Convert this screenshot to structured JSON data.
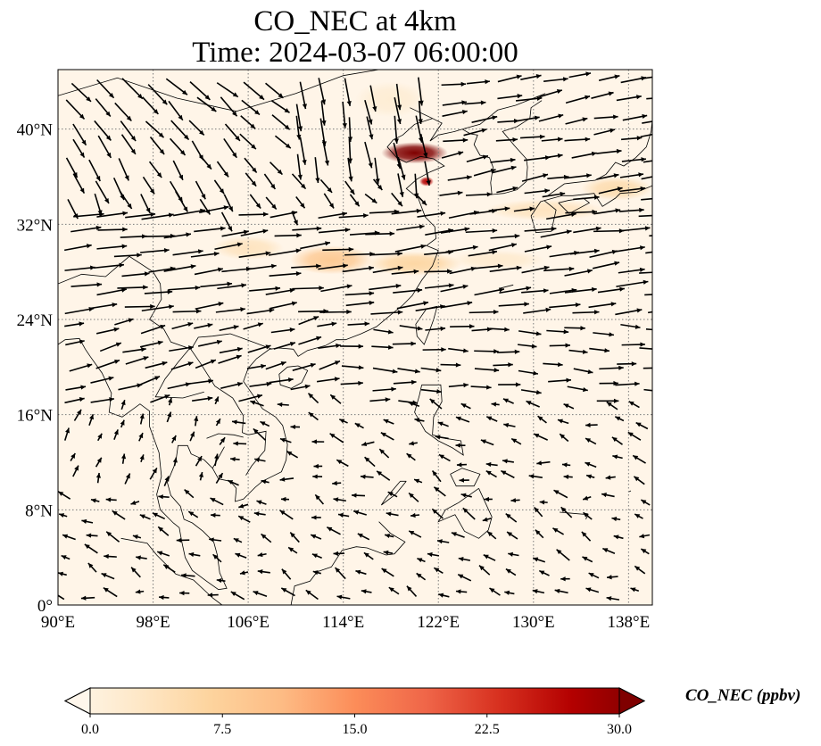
{
  "title": {
    "line1": "CO_NEC at 4km",
    "line2": "Time: 2024-03-07 06:00:00"
  },
  "map": {
    "extent": {
      "lon": [
        90,
        140
      ],
      "lat": [
        0,
        45
      ]
    },
    "lon_ticks": [
      {
        "value": 90,
        "label": "90°E"
      },
      {
        "value": 98,
        "label": "98°E"
      },
      {
        "value": 106,
        "label": "106°E"
      },
      {
        "value": 114,
        "label": "114°E"
      },
      {
        "value": 122,
        "label": "122°E"
      },
      {
        "value": 130,
        "label": "130°E"
      },
      {
        "value": 138,
        "label": "138°E"
      }
    ],
    "lat_ticks": [
      {
        "value": 0,
        "label": "0°"
      },
      {
        "value": 8,
        "label": "8°N"
      },
      {
        "value": 16,
        "label": "16°N"
      },
      {
        "value": 24,
        "label": "24°N"
      },
      {
        "value": 32,
        "label": "32°N"
      },
      {
        "value": 40,
        "label": "40°N"
      }
    ],
    "gridlines": true,
    "colors": {
      "background": "#fff5e8",
      "grid": "#7a7a7a",
      "coast": "#000000",
      "arrow": "#000000"
    },
    "plumes": [
      {
        "lon": 120.0,
        "lat": 38.0,
        "rlon": 2.8,
        "rlat": 0.9,
        "level": 30.0
      },
      {
        "lon": 121.0,
        "lat": 35.6,
        "rlon": 0.6,
        "rlat": 0.4,
        "level": 26.0
      },
      {
        "lon": 113.0,
        "lat": 29.0,
        "rlon": 3.5,
        "rlat": 1.2,
        "level": 9.0
      },
      {
        "lon": 120.0,
        "lat": 28.7,
        "rlon": 4.0,
        "rlat": 1.0,
        "level": 7.0
      },
      {
        "lon": 106.0,
        "lat": 30.0,
        "rlon": 3.0,
        "rlat": 1.0,
        "level": 4.5
      },
      {
        "lon": 131.0,
        "lat": 33.2,
        "rlon": 5.0,
        "rlat": 0.9,
        "level": 4.5
      },
      {
        "lon": 137.0,
        "lat": 35.0,
        "rlon": 3.0,
        "rlat": 1.0,
        "level": 6.0
      },
      {
        "lon": 127.0,
        "lat": 29.0,
        "rlon": 4.0,
        "rlat": 0.8,
        "level": 3.0
      },
      {
        "lon": 118.0,
        "lat": 42.5,
        "rlon": 3.0,
        "rlat": 1.5,
        "level": 2.5
      }
    ]
  },
  "colorbar": {
    "label": "CO_NEC (ppbv)",
    "min": 0.0,
    "max": 30.0,
    "ticks": [
      {
        "value": 0.0,
        "label": "0.0"
      },
      {
        "value": 7.5,
        "label": "7.5"
      },
      {
        "value": 15.0,
        "label": "15.0"
      },
      {
        "value": 22.5,
        "label": "22.5"
      },
      {
        "value": 30.0,
        "label": "30.0"
      }
    ],
    "colormap": "OrRd",
    "stops": [
      "#fff7ec",
      "#fee8c8",
      "#fdd49e",
      "#fdbb84",
      "#fc8d59",
      "#ef6548",
      "#d7301f",
      "#b30000",
      "#7f0000"
    ]
  }
}
